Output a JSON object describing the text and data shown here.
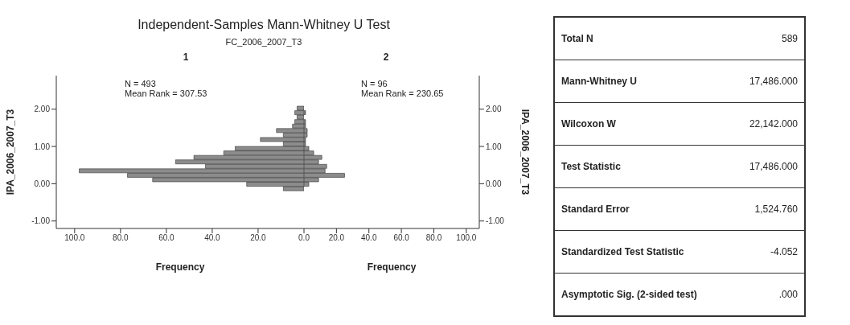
{
  "chart_data": [
    {
      "type": "histogram",
      "title": "Independent-Samples Mann-Whitney U Test",
      "subtitle": "FC_2006_2007_T3",
      "orientation": "horizontal",
      "ylabel": "IPA_2006_2007_T3",
      "xlabel": "Frequency",
      "color": "#8c8c8c",
      "bins": [
        -0.2,
        -0.08,
        0.04,
        0.16,
        0.28,
        0.4,
        0.52,
        0.64,
        0.76,
        0.88,
        1.0,
        1.12,
        1.24,
        1.36,
        1.48,
        1.6,
        1.72,
        1.84,
        1.96,
        2.08
      ],
      "values": [
        9,
        25,
        66,
        77,
        98,
        43,
        56,
        48,
        35,
        30,
        9,
        19,
        9,
        12,
        5,
        4,
        3,
        4,
        3
      ],
      "xlim": [
        108,
        0
      ],
      "xticks": [
        {
          "value": 100,
          "label": "100.0"
        },
        {
          "value": 80,
          "label": "80.0"
        },
        {
          "value": 60,
          "label": "60.0"
        },
        {
          "value": 40,
          "label": "40.0"
        },
        {
          "value": 20,
          "label": "20.0"
        },
        {
          "value": 0,
          "label": "0.0"
        }
      ],
      "ylim": [
        -1.2,
        2.9
      ],
      "yticks": [
        {
          "value": -1,
          "label": "-1.00"
        },
        {
          "value": 0,
          "label": "0.00"
        },
        {
          "value": 1,
          "label": "1.00"
        },
        {
          "value": 2,
          "label": "2.00"
        }
      ],
      "annotations": [
        "1",
        "N = 493",
        "Mean Rank = 307.53"
      ]
    },
    {
      "type": "histogram",
      "orientation": "horizontal",
      "ylabel": "IPA_2006_2007_T3",
      "xlabel": "Frequency",
      "color": "#8c8c8c",
      "bins": [
        -0.2,
        -0.08,
        0.04,
        0.16,
        0.28,
        0.4,
        0.52,
        0.64,
        0.76,
        0.88,
        1.0,
        1.12,
        1.24,
        1.36,
        1.48,
        1.6,
        1.72,
        1.84,
        1.96,
        2.08
      ],
      "values": [
        0,
        3,
        9,
        25,
        13,
        14,
        9,
        11,
        6,
        3,
        1,
        1,
        2,
        2,
        1,
        1,
        0,
        1,
        0
      ],
      "xlim": [
        0,
        108
      ],
      "xticks": [
        {
          "value": 20,
          "label": "20.0"
        },
        {
          "value": 40,
          "label": "40.0"
        },
        {
          "value": 60,
          "label": "60.0"
        },
        {
          "value": 80,
          "label": "80.0"
        },
        {
          "value": 100,
          "label": "100.0"
        }
      ],
      "ylim": [
        -1.2,
        2.9
      ],
      "yticks": [
        {
          "value": -1,
          "label": "-1.00"
        },
        {
          "value": 0,
          "label": "0.00"
        },
        {
          "value": 1,
          "label": "1.00"
        },
        {
          "value": 2,
          "label": "2.00"
        }
      ],
      "annotations": [
        "2",
        "N = 96",
        "Mean Rank = 230.65"
      ]
    },
    {
      "type": "other",
      "annotations": [
        "Total N",
        "589",
        "Mann-Whitney U",
        "17,486.000",
        "Wilcoxon W",
        "22,142.000",
        "Test Statistic",
        "17,486.000",
        "Standard Error",
        "1,524.760",
        "Standardized Test Statistic",
        "-4.052",
        "Asymptotic Sig. (2-sided test)",
        ".000"
      ]
    }
  ]
}
